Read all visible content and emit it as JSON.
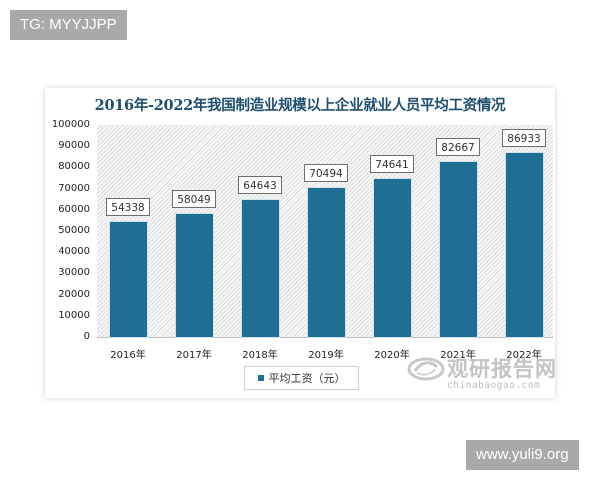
{
  "overlay": {
    "top_left_tag": "TG: MYYJJPP",
    "bottom_right_tag": "www.yuli9.org"
  },
  "watermark": {
    "logo_icon": "chinabaogao-swirl-logo",
    "brand_cn": "观研报告网",
    "brand_en": "chinabaogao.com"
  },
  "colors": {
    "bar": "#1f6e93",
    "title": "#1f4e6e"
  },
  "chart_data": {
    "type": "bar",
    "title": "2016年-2022年我国制造业规模以上企业就业人员平均工资情况",
    "xlabel": "",
    "ylabel": "",
    "categories": [
      "2016年",
      "2017年",
      "2018年",
      "2019年",
      "2020年",
      "2021年",
      "2022年"
    ],
    "series": [
      {
        "name": "平均工资（元）",
        "values": [
          54338,
          58049,
          64643,
          70494,
          74641,
          82667,
          86933
        ]
      }
    ],
    "value_labels": [
      "54338",
      "58049",
      "64643",
      "70494",
      "74641",
      "82667",
      "86933"
    ],
    "ylim": [
      0,
      100000
    ],
    "yticks": [
      "100000",
      "90000",
      "80000",
      "70000",
      "60000",
      "50000",
      "40000",
      "30000",
      "20000",
      "10000",
      "0"
    ],
    "grid": false,
    "legend_position": "bottom",
    "legend": [
      "平均工资（元）"
    ]
  }
}
